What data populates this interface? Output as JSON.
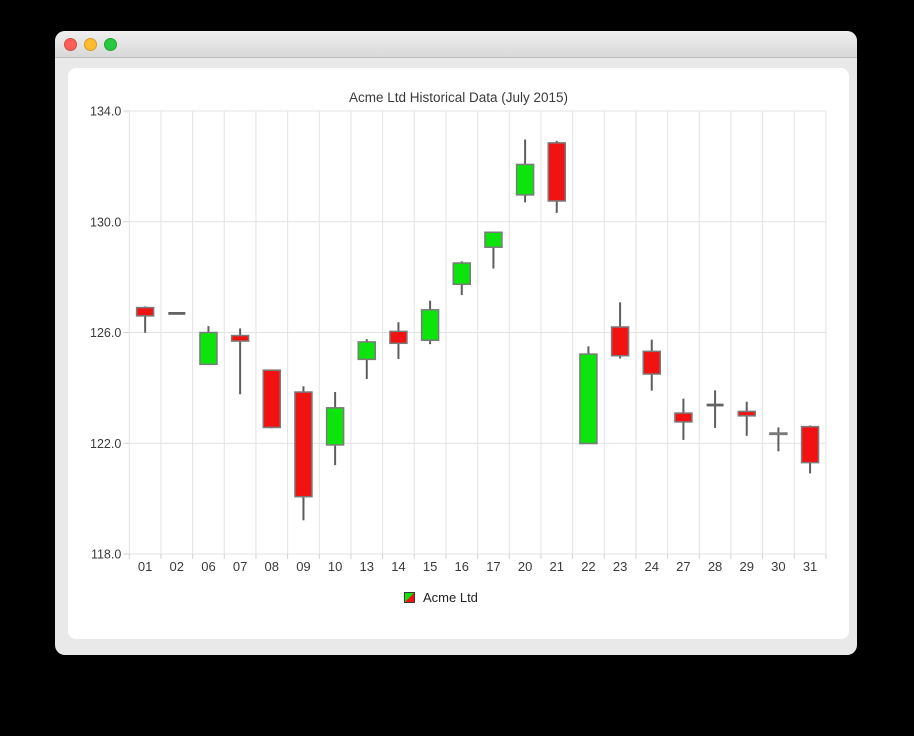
{
  "titlebar": {
    "controls": [
      {
        "name": "close",
        "color": "#ff5f57"
      },
      {
        "name": "minimize",
        "color": "#febc2e"
      },
      {
        "name": "zoom",
        "color": "#28c840"
      }
    ]
  },
  "chart_data": {
    "type": "candlestick",
    "title": "Acme Ltd Historical Data (July 2015)",
    "series": [
      {
        "name": "Acme Ltd"
      }
    ],
    "legend_position": "bottom",
    "grid": true,
    "xlabel": "",
    "ylabel": "",
    "ylim": [
      118.0,
      134.0
    ],
    "yticks": [
      134.0,
      130.0,
      126.0,
      122.0,
      118.0
    ],
    "ytick_labels": [
      "134.0",
      "130.0",
      "126.0",
      "122.0",
      "118.0"
    ],
    "categories": [
      "01",
      "02",
      "06",
      "07",
      "08",
      "09",
      "10",
      "13",
      "14",
      "15",
      "16",
      "17",
      "20",
      "21",
      "22",
      "23",
      "24",
      "27",
      "28",
      "29",
      "30",
      "31"
    ],
    "ohlc": [
      [
        126.9,
        126.94,
        125.99,
        126.6
      ],
      [
        126.69,
        126.69,
        126.69,
        126.69
      ],
      [
        124.85,
        126.23,
        124.85,
        126.0
      ],
      [
        125.89,
        126.15,
        123.77,
        125.69
      ],
      [
        124.64,
        124.64,
        122.54,
        122.57
      ],
      [
        123.85,
        124.06,
        119.22,
        120.07
      ],
      [
        121.94,
        123.85,
        121.21,
        123.28
      ],
      [
        125.03,
        125.76,
        124.32,
        125.66
      ],
      [
        126.04,
        126.37,
        125.04,
        125.61
      ],
      [
        125.72,
        127.15,
        125.58,
        126.82
      ],
      [
        127.74,
        128.57,
        127.35,
        128.51
      ],
      [
        129.08,
        129.62,
        128.31,
        129.62
      ],
      [
        130.97,
        132.97,
        130.7,
        132.07
      ],
      [
        132.85,
        132.92,
        130.32,
        130.75
      ],
      [
        121.99,
        125.5,
        121.99,
        125.22
      ],
      [
        126.2,
        127.09,
        125.06,
        125.16
      ],
      [
        125.32,
        125.74,
        123.9,
        124.5
      ],
      [
        123.09,
        123.61,
        122.12,
        122.77
      ],
      [
        123.38,
        123.91,
        122.55,
        123.38
      ],
      [
        123.15,
        123.5,
        122.27,
        122.99
      ],
      [
        122.32,
        122.57,
        121.71,
        122.37
      ],
      [
        122.6,
        122.64,
        120.91,
        121.3
      ]
    ]
  },
  "colors": {
    "increasing": "#0ce50c",
    "decreasing": "#f21212",
    "body_border": "#7a7a7a",
    "wick": "#5e5e5e",
    "doji": "#636363",
    "grid": "#e3e3e3",
    "tick": "#d2d2d2",
    "label": "#3a3a3a"
  }
}
